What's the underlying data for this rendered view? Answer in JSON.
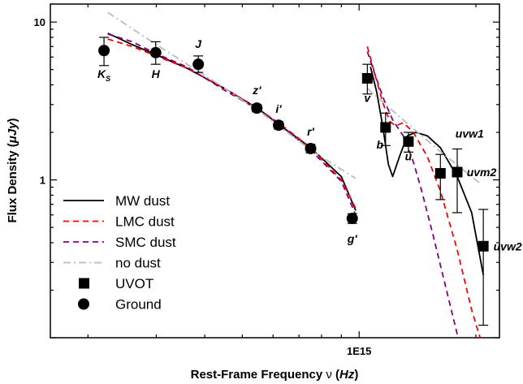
{
  "chart_data": {
    "type": "scatter",
    "xlabel": "Rest-Frame Frequency ν (Hz)",
    "ylabel": "Flux Density (μJy)",
    "xscale": "log",
    "yscale": "log",
    "xlim": [
      160000000000000.0,
      2300000000000000.0
    ],
    "ylim": [
      0.1,
      13
    ],
    "x_ticks": [
      {
        "value": 1000000000000000.0,
        "label": "1E15"
      }
    ],
    "y_ticks": [
      {
        "value": 10,
        "label": "10"
      },
      {
        "value": 1,
        "label": "1"
      }
    ],
    "ground": [
      {
        "label": "KS",
        "x": 220000000000000.0,
        "y": 6.6,
        "yerr": [
          1.3,
          1.4
        ]
      },
      {
        "label": "H",
        "x": 299000000000000.0,
        "y": 6.4,
        "yerr": [
          1.0,
          1.1
        ]
      },
      {
        "label": "J",
        "x": 385000000000000.0,
        "y": 5.4,
        "yerr": [
          0.6,
          0.7
        ]
      },
      {
        "label": "z'",
        "x": 545000000000000.0,
        "y": 2.85,
        "yerr": [
          0.15,
          0.15
        ]
      },
      {
        "label": "i'",
        "x": 620000000000000.0,
        "y": 2.22,
        "yerr": [
          0.12,
          0.12
        ]
      },
      {
        "label": "r'",
        "x": 750000000000000.0,
        "y": 1.58,
        "yerr": [
          0.1,
          0.1
        ]
      },
      {
        "label": "g'",
        "x": 960000000000000.0,
        "y": 0.57,
        "yerr": [
          0.04,
          0.04
        ]
      }
    ],
    "uvot": [
      {
        "label": "v",
        "x": 1050000000000000.0,
        "y": 4.4,
        "yerr": [
          0.9,
          1.0
        ]
      },
      {
        "label": "b",
        "x": 1170000000000000.0,
        "y": 2.15,
        "yerr": [
          0.5,
          0.5
        ]
      },
      {
        "label": "u",
        "x": 1340000000000000.0,
        "y": 1.75,
        "yerr": [
          0.25,
          0.25
        ]
      },
      {
        "label": "uvw1",
        "x": 1620000000000000.0,
        "y": 1.1,
        "yerr": [
          0.35,
          0.35
        ]
      },
      {
        "label": "uvm2",
        "x": 1790000000000000.0,
        "y": 1.12,
        "yerr": [
          0.5,
          0.45
        ]
      },
      {
        "label": "uvw2",
        "x": 2090000000000000.0,
        "y": 0.38,
        "yerr": [
          0.26,
          0.27
        ]
      }
    ],
    "series": [
      {
        "name": "MW dust",
        "color": "#000000",
        "dash": "solid",
        "x": [
          225000000000000.0,
          260000000000000.0,
          300000000000000.0,
          360000000000000.0,
          450000000000000.0,
          550000000000000.0,
          620000000000000.0,
          750000000000000.0,
          900000000000000.0,
          980000000000000.0,
          null,
          1070000000000000.0,
          1110000000000000.0,
          1150000000000000.0,
          1190000000000000.0,
          1220000000000000.0,
          1270000000000000.0,
          1330000000000000.0,
          1400000000000000.0,
          1500000000000000.0,
          1620000000000000.0,
          1790000000000000.0,
          1950000000000000.0,
          2090000000000000.0
        ],
        "y": [
          8.5,
          7.2,
          6.2,
          5.1,
          3.8,
          2.82,
          2.25,
          1.6,
          1.05,
          0.64,
          null,
          5.2,
          3.6,
          2.2,
          1.25,
          1.05,
          1.4,
          1.9,
          2.0,
          1.9,
          1.6,
          1.05,
          0.62,
          0.25
        ]
      },
      {
        "name": "LMC dust",
        "color": "#ff0000",
        "dash": "dashed",
        "x": [
          225000000000000.0,
          260000000000000.0,
          300000000000000.0,
          360000000000000.0,
          450000000000000.0,
          550000000000000.0,
          620000000000000.0,
          750000000000000.0,
          900000000000000.0,
          980000000000000.0,
          null,
          1050000000000000.0,
          1100000000000000.0,
          1150000000000000.0,
          1200000000000000.0,
          1240000000000000.0,
          1300000000000000.0,
          1380000000000000.0,
          1500000000000000.0,
          1620000000000000.0,
          1790000000000000.0,
          1950000000000000.0,
          2050000000000000.0
        ],
        "y": [
          7.8,
          7.0,
          6.1,
          5.1,
          3.8,
          2.8,
          2.3,
          1.6,
          1.0,
          0.66,
          null,
          7.0,
          4.6,
          3.1,
          2.35,
          2.2,
          2.3,
          2.0,
          1.4,
          0.85,
          0.36,
          0.15,
          0.1
        ]
      },
      {
        "name": "SMC dust",
        "color": "#800080",
        "dash": "dashed",
        "x": [
          225000000000000.0,
          260000000000000.0,
          300000000000000.0,
          360000000000000.0,
          450000000000000.0,
          550000000000000.0,
          620000000000000.0,
          750000000000000.0,
          900000000000000.0,
          980000000000000.0,
          null,
          1050000000000000.0,
          1100000000000000.0,
          1160000000000000.0,
          1220000000000000.0,
          1300000000000000.0,
          1380000000000000.0,
          1450000000000000.0,
          1550000000000000.0,
          1680000000000000.0,
          1800000000000000.0
        ],
        "y": [
          8.4,
          7.5,
          6.3,
          5.2,
          3.7,
          2.78,
          2.27,
          1.55,
          0.98,
          0.6,
          null,
          6.5,
          4.6,
          3.2,
          2.4,
          1.9,
          1.3,
          0.85,
          0.45,
          0.2,
          0.1
        ]
      },
      {
        "name": "no dust",
        "color": "#bbbbbb",
        "dash": "dashdot",
        "x": [
          225000000000000.0,
          300000000000000.0,
          400000000000000.0,
          550000000000000.0,
          750000000000000.0,
          980000000000000.0,
          null,
          1050000000000000.0,
          1300000000000000.0,
          1600000000000000.0,
          2050000000000000.0
        ],
        "y": [
          11.5,
          7.2,
          4.6,
          2.75,
          1.55,
          1.02,
          null,
          3.8,
          2.4,
          1.55,
          0.95
        ]
      }
    ],
    "legend": {
      "placement": "bottom-left",
      "entries": [
        {
          "name": "MW dust"
        },
        {
          "name": "LMC dust"
        },
        {
          "name": "SMC dust"
        },
        {
          "name": "no dust"
        },
        {
          "name": "UVOT"
        },
        {
          "name": "Ground"
        }
      ]
    }
  }
}
